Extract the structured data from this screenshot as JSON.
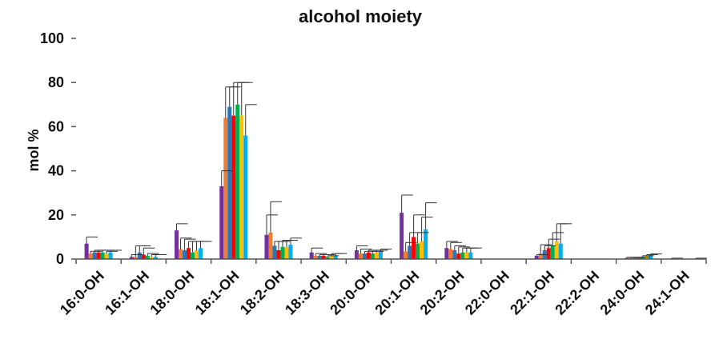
{
  "chart_data": {
    "type": "bar",
    "title": "alcohol moiety",
    "xlabel": "",
    "ylabel": "mol %",
    "ylim": [
      0,
      100
    ],
    "yticks": [
      0,
      20,
      40,
      60,
      80,
      100
    ],
    "grid": false,
    "legend": "none",
    "categories": [
      "16:0-OH",
      "16:1-OH",
      "18:0-OH",
      "18:1-OH",
      "18:2-OH",
      "18:3-OH",
      "20:0-OH",
      "20:1-OH",
      "20:2-OH",
      "22:0-OH",
      "22:1-OH",
      "22:2-OH",
      "24:0-OH",
      "24:1-OH"
    ],
    "series": [
      {
        "color": "#7030a0",
        "values": [
          7,
          1,
          13,
          33,
          11,
          3,
          4,
          21,
          5,
          0,
          1.5,
          0,
          0.5,
          0.2
        ],
        "errors": [
          3,
          1,
          3,
          7,
          9,
          2,
          2,
          8,
          3,
          0,
          0.5,
          0,
          0.3,
          0.2
        ]
      },
      {
        "color": "#ed7d31",
        "values": [
          2.5,
          1,
          4.5,
          64,
          12,
          1.5,
          2.5,
          3.5,
          4.5,
          0,
          2.5,
          0,
          0.5,
          0
        ],
        "errors": [
          1,
          5,
          5,
          14,
          14,
          1,
          2,
          4,
          3,
          0,
          4,
          0,
          0.3,
          0
        ]
      },
      {
        "color": "#2e75b6",
        "values": [
          3,
          3,
          4,
          69,
          6,
          1.5,
          2.5,
          6,
          4,
          0,
          4,
          0,
          0.5,
          0
        ],
        "errors": [
          1,
          3,
          5,
          9,
          2,
          0.5,
          1,
          6,
          2,
          0,
          2,
          0,
          0.3,
          0
        ]
      },
      {
        "color": "#ff0000",
        "values": [
          3,
          2,
          5,
          65,
          4,
          1.5,
          3,
          10,
          2.5,
          0,
          5,
          0,
          0.5,
          0
        ],
        "errors": [
          1,
          3,
          3,
          15,
          4,
          0.5,
          1,
          10,
          3,
          0,
          4,
          0,
          0.3,
          0
        ]
      },
      {
        "color": "#00b050",
        "values": [
          3,
          1.5,
          3,
          70,
          5.5,
          1,
          2.5,
          7,
          3,
          0,
          6,
          0,
          1,
          0
        ],
        "errors": [
          1,
          1,
          5,
          10,
          3,
          0.5,
          1,
          5,
          2,
          0,
          6,
          0,
          0.5,
          0
        ]
      },
      {
        "color": "#ffc000",
        "values": [
          2.5,
          1,
          4,
          65,
          5.5,
          1.5,
          3,
          8,
          3,
          0,
          8,
          0,
          1.5,
          0
        ],
        "errors": [
          1,
          1,
          4,
          15,
          3,
          1,
          1,
          11,
          2,
          0,
          8,
          0,
          0.5,
          0
        ]
      },
      {
        "color": "#00b0f0",
        "values": [
          3,
          1,
          5,
          56,
          6.5,
          1.5,
          3.5,
          13.5,
          3,
          0,
          7,
          0,
          2,
          0.2
        ],
        "errors": [
          1,
          1,
          3,
          14,
          3,
          1,
          1,
          12,
          2,
          0,
          9,
          0,
          0.3,
          0.2
        ]
      }
    ]
  }
}
